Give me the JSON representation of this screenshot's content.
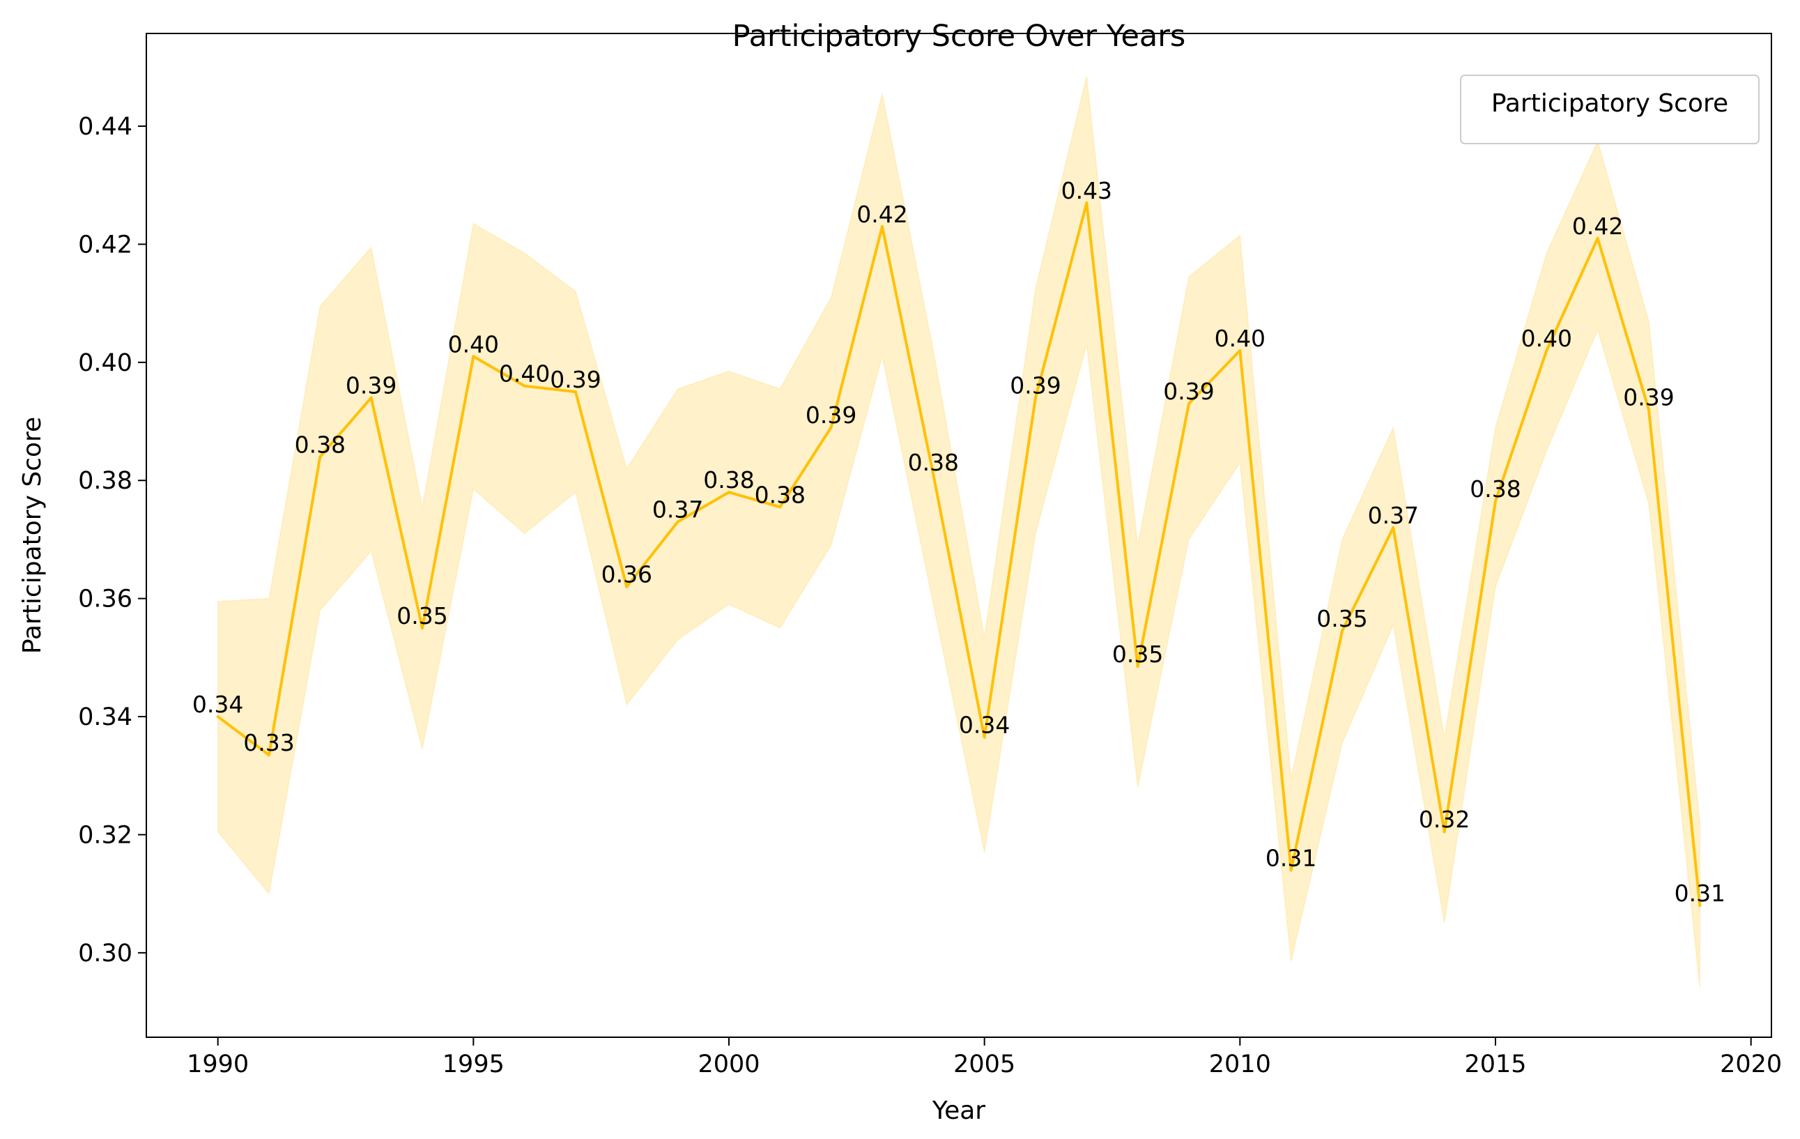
{
  "chart_data": {
    "type": "line",
    "title": "Participatory Score Over Years",
    "xlabel": "Year",
    "ylabel": "Participatory Score",
    "xlim": [
      1988.6,
      2020.4
    ],
    "ylim": [
      0.2857,
      0.4557
    ],
    "x_ticks": [
      1990,
      1995,
      2000,
      2005,
      2010,
      2015,
      2020
    ],
    "y_ticks": [
      0.3,
      0.32,
      0.34,
      0.36,
      0.38,
      0.4,
      0.42,
      0.44
    ],
    "grid": false,
    "legend": {
      "position": "top-right",
      "title": "Participatory Score"
    },
    "colors": {
      "line": "#FFC107",
      "band": "#FFC107",
      "band_opacity": 0.22
    },
    "series": [
      {
        "x": [
          1990,
          1991,
          1992,
          1993,
          1994,
          1995,
          1996,
          1997,
          1998,
          1999,
          2000,
          2001,
          2002,
          2003,
          2004,
          2005,
          2006,
          2007,
          2008,
          2009,
          2010,
          2011,
          2012,
          2013,
          2014,
          2015,
          2016,
          2017,
          2018,
          2019
        ],
        "values": [
          0.34,
          0.3335,
          0.384,
          0.394,
          0.355,
          0.401,
          0.396,
          0.395,
          0.362,
          0.373,
          0.378,
          0.3755,
          0.389,
          0.423,
          0.381,
          0.3365,
          0.394,
          0.427,
          0.3485,
          0.393,
          0.402,
          0.314,
          0.3545,
          0.372,
          0.3205,
          0.3765,
          0.402,
          0.421,
          0.392,
          0.308
        ],
        "lower": [
          0.3205,
          0.31,
          0.358,
          0.368,
          0.3345,
          0.3785,
          0.371,
          0.378,
          0.342,
          0.353,
          0.359,
          0.355,
          0.369,
          0.401,
          0.359,
          0.317,
          0.371,
          0.403,
          0.328,
          0.37,
          0.383,
          0.2985,
          0.3355,
          0.3555,
          0.305,
          0.362,
          0.385,
          0.4055,
          0.376,
          0.294
        ],
        "upper": [
          0.3595,
          0.36,
          0.4095,
          0.4195,
          0.3755,
          0.4235,
          0.4185,
          0.412,
          0.382,
          0.3955,
          0.3985,
          0.3955,
          0.411,
          0.4455,
          0.402,
          0.3535,
          0.4125,
          0.4485,
          0.369,
          0.4145,
          0.4215,
          0.3295,
          0.37,
          0.389,
          0.3365,
          0.389,
          0.4185,
          0.4375,
          0.407,
          0.322
        ],
        "labels": [
          "0.34",
          "0.33",
          "0.38",
          "0.39",
          "0.35",
          "0.40",
          "0.40",
          "0.39",
          "0.36",
          "0.37",
          "0.38",
          "0.38",
          "0.39",
          "0.42",
          "0.38",
          "0.34",
          "0.39",
          "0.43",
          "0.35",
          "0.39",
          "0.40",
          "0.31",
          "0.35",
          "0.37",
          "0.32",
          "0.38",
          "0.40",
          "0.42",
          "0.39",
          "0.31"
        ]
      }
    ]
  }
}
